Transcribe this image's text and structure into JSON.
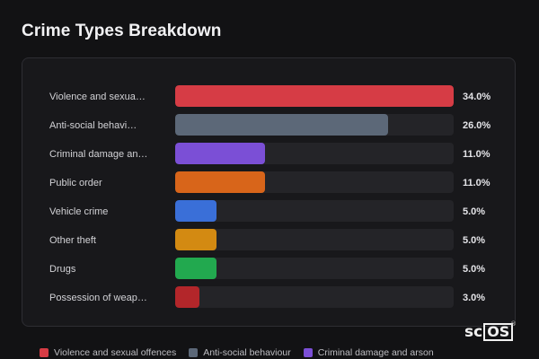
{
  "title": "Crime Types Breakdown",
  "colors": {
    "background": "#121214",
    "card": "#18181b",
    "track": "#242428"
  },
  "chart_data": {
    "type": "bar",
    "orientation": "horizontal",
    "title": "Crime Types Breakdown",
    "xlim": [
      0,
      34
    ],
    "categories": [
      "Violence and sexua…",
      "Anti-social behavi…",
      "Criminal damage an…",
      "Public order",
      "Vehicle crime",
      "Other theft",
      "Drugs",
      "Possession of weap…"
    ],
    "values": [
      34.0,
      26.0,
      11.0,
      11.0,
      5.0,
      5.0,
      5.0,
      3.0
    ],
    "value_labels": [
      "34.0%",
      "26.0%",
      "11.0%",
      "11.0%",
      "5.0%",
      "5.0%",
      "5.0%",
      "3.0%"
    ],
    "colors": [
      "#d63c45",
      "#5c6878",
      "#7b4fd6",
      "#d8651a",
      "#3a6fd8",
      "#d38a12",
      "#22a94f",
      "#b3262a"
    ],
    "legend_position": "bottom",
    "legend": [
      {
        "label": "Violence and sexual offences",
        "color": "#d63c45"
      },
      {
        "label": "Anti-social behaviour",
        "color": "#5c6878"
      },
      {
        "label": "Criminal damage and arson",
        "color": "#7b4fd6"
      }
    ]
  },
  "logo": {
    "prefix": "sc",
    "boxed": "OS",
    "mark": "®"
  }
}
